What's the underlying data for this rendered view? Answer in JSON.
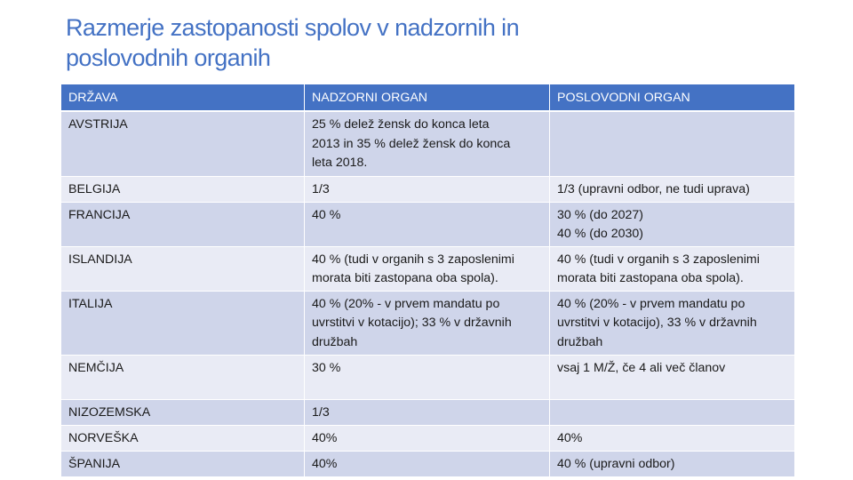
{
  "title": {
    "line1": "Razmerje zastopanosti spolov v nadzornih in",
    "line2": "poslovodnih organih"
  },
  "table": {
    "headers": [
      "DRŽAVA",
      "NADZORNI  ORGAN",
      "POSLOVODNI ORGAN"
    ],
    "rows": [
      {
        "country": "AVSTRIJA",
        "supervisory": [
          "25 % delež žensk do konca leta",
          "2013 in 35 % delež žensk do konca",
          "leta 2018."
        ],
        "management": []
      },
      {
        "country": "BELGIJA",
        "supervisory": [
          "1/3"
        ],
        "management": [
          "1/3 (upravni odbor, ne tudi uprava)"
        ]
      },
      {
        "country": "FRANCIJA",
        "supervisory": [
          "40 %"
        ],
        "management": [
          "30 % (do 2027)",
          "40 % (do 2030)"
        ]
      },
      {
        "country": "ISLANDIJA",
        "supervisory": [
          "40 % (tudi v organih s 3 zaposlenimi",
          "morata biti zastopana oba spola)."
        ],
        "management": [
          "40 % (tudi v organih s 3 zaposlenimi",
          "morata biti zastopana oba spola)."
        ]
      },
      {
        "country": "ITALIJA",
        "supervisory": [
          "40 % (20% - v prvem mandatu po",
          "uvrstitvi v kotacijo); 33 % v državnih",
          "družbah"
        ],
        "management": [
          "40 % (20% - v prvem mandatu po",
          "uvrstitvi v kotacijo), 33 % v državnih",
          "družbah"
        ]
      },
      {
        "country": "NEMČIJA",
        "supervisory": [
          "30 %"
        ],
        "management": [
          "vsaj 1 M/Ž, če 4 ali več članov"
        ]
      },
      {
        "country": "NIZOZEMSKA",
        "supervisory": [
          "1/3"
        ],
        "management": []
      },
      {
        "country": "NORVEŠKA",
        "supervisory": [
          "40%"
        ],
        "management": [
          "40%"
        ]
      },
      {
        "country": "ŠPANIJA",
        "supervisory": [
          "40%"
        ],
        "management": [
          "40 % (upravni odbor)"
        ]
      }
    ]
  }
}
